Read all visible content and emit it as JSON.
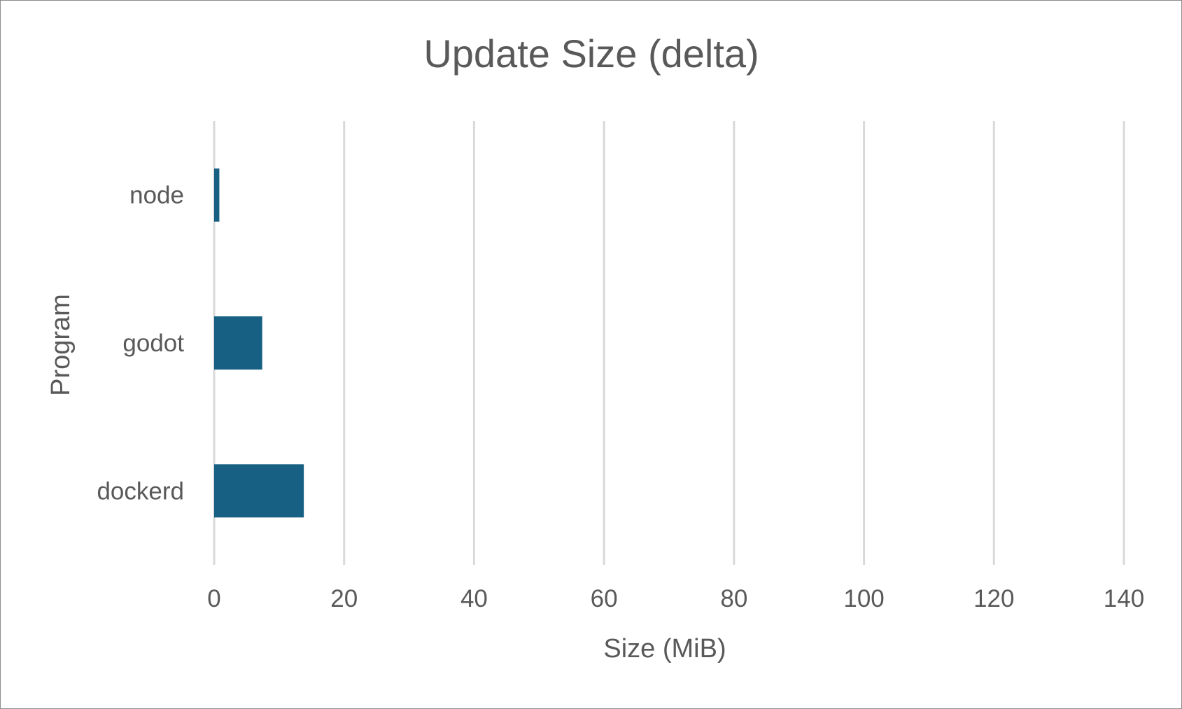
{
  "chart_data": {
    "type": "bar",
    "orientation": "horizontal",
    "title": "Update Size (delta)",
    "xlabel": "Size (MiB)",
    "ylabel": "Program",
    "categories": [
      "node",
      "godot",
      "dockerd"
    ],
    "series": [
      {
        "values": [
          0.8,
          7.4,
          13.8
        ],
        "color": "#175f83"
      }
    ],
    "xlim": [
      0,
      140
    ],
    "xticks": [
      0,
      20,
      40,
      60,
      80,
      100,
      120,
      140
    ],
    "grid": true,
    "legend": "none"
  }
}
